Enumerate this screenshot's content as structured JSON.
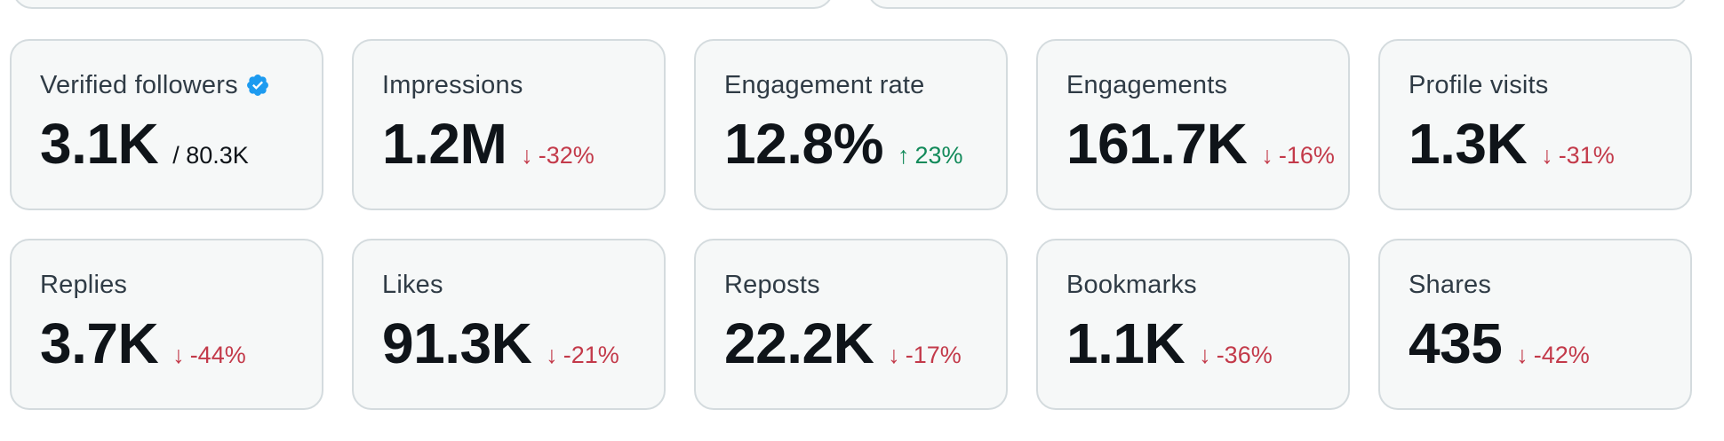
{
  "colors": {
    "card_bg": "#f6f8f8",
    "card_border": "#d4dbde",
    "label": "#2f3b45",
    "value": "#0f1419",
    "down": "#c33a4a",
    "up": "#128a5a",
    "verified": "#1d9bf0"
  },
  "metrics": [
    {
      "label": "Verified followers",
      "value": "3.1K",
      "sub": "/ 80.3K",
      "verified_icon": "verified-badge-icon"
    },
    {
      "label": "Impressions",
      "value": "1.2M",
      "change": "-32%",
      "direction": "down",
      "arrow": "↓"
    },
    {
      "label": "Engagement rate",
      "value": "12.8%",
      "change": "23%",
      "direction": "up",
      "arrow": "↑"
    },
    {
      "label": "Engagements",
      "value": "161.7K",
      "change": "-16%",
      "direction": "down",
      "arrow": "↓"
    },
    {
      "label": "Profile visits",
      "value": "1.3K",
      "change": "-31%",
      "direction": "down",
      "arrow": "↓"
    },
    {
      "label": "Replies",
      "value": "3.7K",
      "change": "-44%",
      "direction": "down",
      "arrow": "↓"
    },
    {
      "label": "Likes",
      "value": "91.3K",
      "change": "-21%",
      "direction": "down",
      "arrow": "↓"
    },
    {
      "label": "Reposts",
      "value": "22.2K",
      "change": "-17%",
      "direction": "down",
      "arrow": "↓"
    },
    {
      "label": "Bookmarks",
      "value": "1.1K",
      "change": "-36%",
      "direction": "down",
      "arrow": "↓"
    },
    {
      "label": "Shares",
      "value": "435",
      "change": "-42%",
      "direction": "down",
      "arrow": "↓"
    }
  ]
}
